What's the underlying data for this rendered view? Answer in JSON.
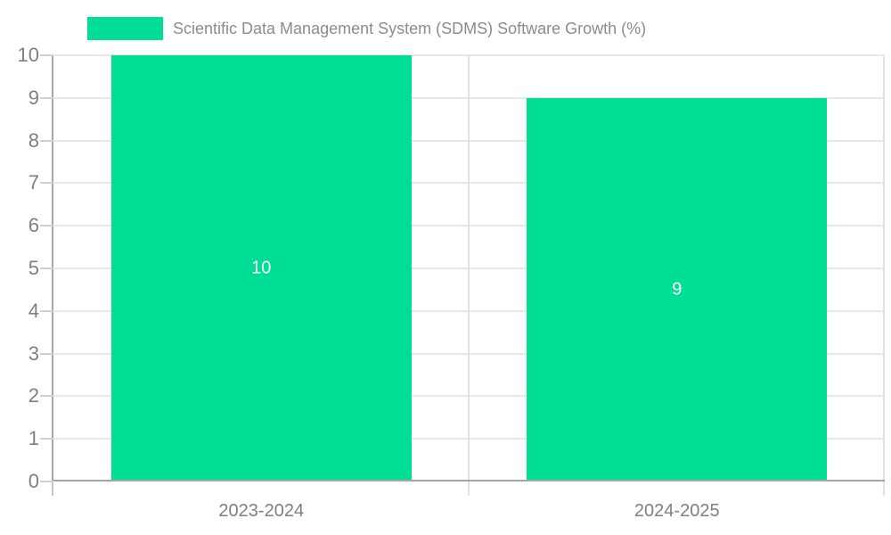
{
  "legend": {
    "label": "Scientific Data Management System (SDMS) Software Growth (%)",
    "swatch_color": "#00dd94"
  },
  "chart_data": {
    "type": "bar",
    "title": "Scientific Data Management System (SDMS) Software Growth (%)",
    "categories": [
      "2023-2024",
      "2024-2025"
    ],
    "values": [
      10,
      9
    ],
    "bar_labels": [
      "10",
      "9"
    ],
    "series_name": "Scientific Data Management System (SDMS) Software Growth (%)",
    "xlabel": "",
    "ylabel": "",
    "ylim": [
      0,
      10
    ],
    "yticks": [
      0,
      1,
      2,
      3,
      4,
      5,
      6,
      7,
      8,
      9,
      10
    ],
    "grid": true,
    "legend_position": "top-left",
    "bar_color": "#00dd94",
    "bar_label_color": "#ffffff",
    "axis_color": "#a6a6a6",
    "gridline_color": "#e7e7e7",
    "tick_label_color": "#7f7f7f"
  }
}
